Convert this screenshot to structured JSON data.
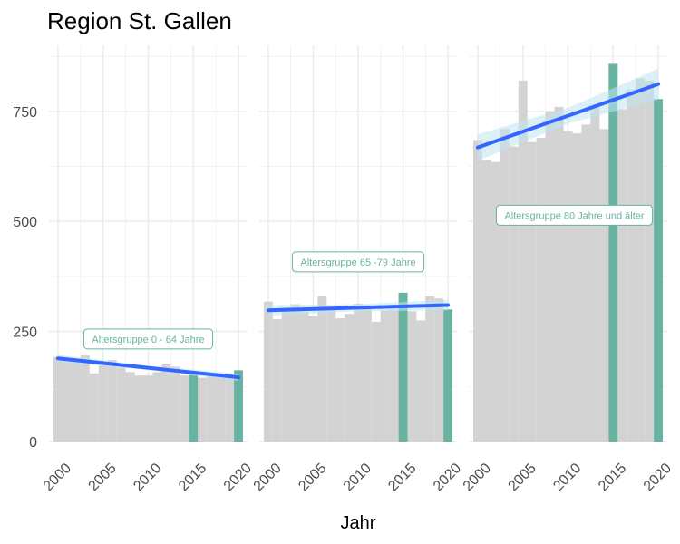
{
  "chart_data": {
    "type": "bar",
    "title": "Region St. Gallen",
    "xlabel": "Jahr",
    "ylabel": "",
    "ylim": [
      0,
      900
    ],
    "xlim": [
      1999,
      2021
    ],
    "yticks": [
      0,
      250,
      500,
      750
    ],
    "xticks": [
      2000,
      2005,
      2010,
      2015,
      2020
    ],
    "grid": true,
    "colors": {
      "bar": "#d3d3d3",
      "highlight": "#69b3a2",
      "trend": "#3366ff",
      "band": "#bfe3f2",
      "grid": "#ebebeb"
    },
    "facets": [
      {
        "label": "Altersgruppe 0 - 64 Jahre",
        "x": [
          2000,
          2001,
          2002,
          2003,
          2004,
          2005,
          2006,
          2007,
          2008,
          2009,
          2010,
          2011,
          2012,
          2013,
          2014,
          2015,
          2016,
          2017,
          2018,
          2019,
          2020
        ],
        "values": [
          192,
          184,
          188,
          196,
          155,
          175,
          185,
          168,
          158,
          150,
          150,
          158,
          175,
          170,
          150,
          152,
          145,
          150,
          148,
          150,
          162
        ],
        "highlight": [
          2015,
          2020
        ],
        "trend": [
          189,
          146
        ],
        "band_halfwidth": [
          8,
          5,
          8
        ],
        "annotation_y": 233
      },
      {
        "label": "Altersgruppe 65 -79 Jahre",
        "x": [
          2000,
          2001,
          2002,
          2003,
          2004,
          2005,
          2006,
          2007,
          2008,
          2009,
          2010,
          2011,
          2012,
          2013,
          2014,
          2015,
          2016,
          2017,
          2018,
          2019,
          2020
        ],
        "values": [
          318,
          278,
          305,
          312,
          295,
          285,
          330,
          300,
          280,
          290,
          313,
          310,
          272,
          298,
          300,
          338,
          296,
          275,
          330,
          325,
          300
        ],
        "highlight": [
          2015,
          2020
        ],
        "trend": [
          298,
          310
        ],
        "band_halfwidth": [
          12,
          8,
          12
        ],
        "annotation_y": 408
      },
      {
        "label": "Altersgruppe 80 Jahre und älter",
        "x": [
          2000,
          2001,
          2002,
          2003,
          2004,
          2005,
          2006,
          2007,
          2008,
          2009,
          2010,
          2011,
          2012,
          2013,
          2014,
          2015,
          2016,
          2017,
          2018,
          2019,
          2020
        ],
        "values": [
          685,
          640,
          635,
          710,
          670,
          820,
          680,
          690,
          750,
          760,
          705,
          700,
          720,
          760,
          710,
          858,
          755,
          800,
          825,
          820,
          778
        ],
        "highlight": [
          2015,
          2020
        ],
        "trend": [
          668,
          812
        ],
        "band_halfwidth": [
          30,
          18,
          35
        ],
        "annotation_y": 514
      }
    ]
  }
}
